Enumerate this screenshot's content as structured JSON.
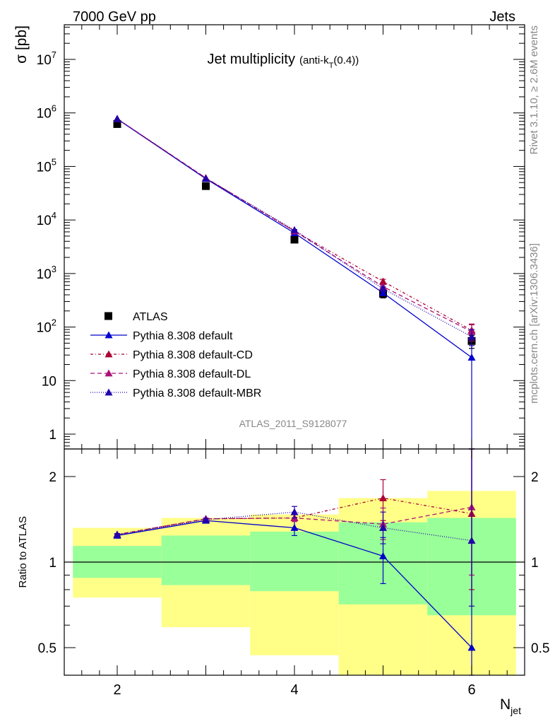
{
  "header": {
    "energy": "7000 GeV pp",
    "category": "Jets",
    "side_left": "Rivet 3.1.10, ≥ 2.6M events",
    "side_right": "mcplots.cern.ch [arXiv:1306.3436]",
    "analysis_id": "ATLAS_2011_S9128077"
  },
  "chart_data": [
    {
      "type": "line",
      "title": "Jet multiplicity",
      "title_sub": "(anti-k",
      "title_sub_index": "T",
      "title_sub_tail": "(0.4))",
      "ylabel": "σ [pb]",
      "yscale": "log",
      "xlim": [
        1.5,
        6.6
      ],
      "ylim": [
        0.4,
        50000000
      ],
      "x": [
        2,
        3,
        4,
        5,
        6
      ],
      "yticks": [
        "1",
        "10",
        "10^2",
        "10^3",
        "10^4",
        "10^5",
        "10^6",
        "10^7"
      ],
      "legend_position": "lower-left",
      "series": [
        {
          "name": "ATLAS",
          "color": "#000000",
          "marker": "square",
          "values": [
            620000,
            43000,
            4300,
            420,
            55
          ],
          "err_low": [
            612000,
            42500,
            4250,
            350,
            40
          ],
          "err_high": [
            628000,
            43500,
            4350,
            490,
            70
          ]
        },
        {
          "name": "Pythia 8.308 default",
          "color": "#0000cc",
          "dash": "solid",
          "marker": "triangle",
          "values": [
            770000,
            59000,
            5700,
            435,
            27
          ],
          "err_low": [
            765000,
            58500,
            5600,
            400,
            0.3
          ],
          "err_high": [
            775000,
            59500,
            5800,
            470,
            60
          ]
        },
        {
          "name": "Pythia 8.308 default-CD",
          "color": "#aa0033",
          "dash": "4,3,1,3",
          "marker": "triangle",
          "values": [
            775000,
            60500,
            6200,
            710,
            87
          ],
          "err_low": [
            770000,
            60000,
            6100,
            640,
            60
          ],
          "err_high": [
            780000,
            61000,
            6300,
            780,
            114
          ]
        },
        {
          "name": "Pythia 8.308 default-DL",
          "color": "#aa1177",
          "dash": "6,4",
          "marker": "triangle",
          "values": [
            775000,
            61000,
            6200,
            570,
            82
          ],
          "err_low": [
            770000,
            60500,
            6100,
            520,
            55
          ],
          "err_high": [
            780000,
            61500,
            6300,
            620,
            110
          ]
        },
        {
          "name": "Pythia 8.308 default-MBR",
          "color": "#2200aa",
          "dash": "1,2",
          "marker": "triangle",
          "values": [
            780000,
            60000,
            6500,
            520,
            66
          ],
          "err_low": [
            775000,
            59500,
            6350,
            480,
            45
          ],
          "err_high": [
            785000,
            60500,
            6650,
            560,
            90
          ]
        }
      ]
    },
    {
      "type": "line",
      "ylabel": "Ratio to ATLAS",
      "yscale": "log",
      "xlabel": "N",
      "xlabel_sub": "jet",
      "xlim": [
        1.5,
        6.6
      ],
      "ylim": [
        0.37,
        2.4
      ],
      "x": [
        2,
        3,
        4,
        5,
        6
      ],
      "xticks": [
        "2",
        "4",
        "6"
      ],
      "yticks": [
        "0.5",
        "1",
        "2"
      ],
      "reference": 1,
      "bands": [
        {
          "x": [
            1.5,
            2.5
          ],
          "yellow": [
            0.75,
            1.32
          ],
          "green": [
            0.88,
            1.14
          ]
        },
        {
          "x": [
            2.5,
            3.5
          ],
          "yellow": [
            0.59,
            1.43
          ],
          "green": [
            0.83,
            1.24
          ]
        },
        {
          "x": [
            3.5,
            4.5
          ],
          "yellow": [
            0.47,
            1.47
          ],
          "green": [
            0.79,
            1.28
          ]
        },
        {
          "x": [
            4.5,
            5.5
          ],
          "yellow": [
            0.36,
            1.68
          ],
          "green": [
            0.71,
            1.38
          ]
        },
        {
          "x": [
            5.5,
            6.5
          ],
          "yellow": [
            0.36,
            1.78
          ],
          "green": [
            0.65,
            1.43
          ]
        }
      ],
      "series": [
        {
          "name": "Pythia 8.308 default",
          "color": "#0000cc",
          "dash": "solid",
          "values": [
            1.24,
            1.4,
            1.32,
            1.05,
            0.5
          ],
          "err_low": [
            1.23,
            1.39,
            1.24,
            0.84,
            0.3
          ],
          "err_high": [
            1.25,
            1.41,
            1.4,
            1.22,
            3.0
          ]
        },
        {
          "name": "Pythia 8.308 default-CD",
          "color": "#aa0033",
          "dash": "4,3,1,3",
          "values": [
            1.25,
            1.42,
            1.43,
            1.68,
            1.48
          ],
          "err_low": [
            1.24,
            1.41,
            1.39,
            1.4,
            0.8
          ],
          "err_high": [
            1.26,
            1.43,
            1.47,
            1.95,
            3.0
          ]
        },
        {
          "name": "Pythia 8.308 default-DL",
          "color": "#aa1177",
          "dash": "6,4",
          "values": [
            1.25,
            1.42,
            1.43,
            1.36,
            1.56
          ],
          "err_low": [
            1.24,
            1.41,
            1.39,
            1.2,
            0.9
          ],
          "err_high": [
            1.26,
            1.43,
            1.47,
            1.55,
            3.0
          ]
        },
        {
          "name": "Pythia 8.308 default-MBR",
          "color": "#2200aa",
          "dash": "1,2",
          "values": [
            1.25,
            1.41,
            1.5,
            1.32,
            1.19
          ],
          "err_low": [
            1.24,
            1.4,
            1.43,
            1.16,
            0.7
          ],
          "err_high": [
            1.26,
            1.42,
            1.57,
            1.5,
            3.0
          ]
        }
      ]
    }
  ]
}
